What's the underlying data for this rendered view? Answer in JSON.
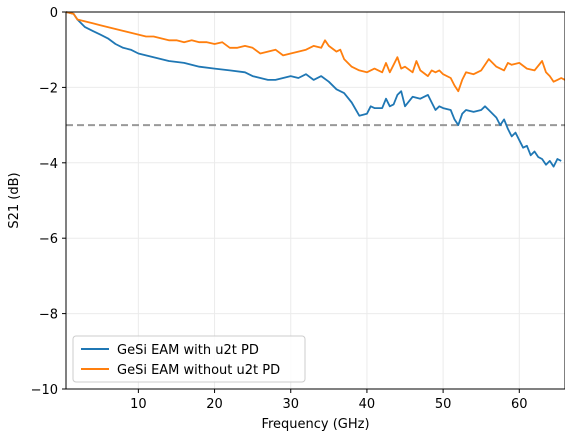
{
  "chart_data": {
    "type": "line",
    "title": "",
    "xlabel": "Frequency (GHz)",
    "ylabel": "S21 (dB)",
    "xlim": [
      0.5,
      66
    ],
    "ylim": [
      -10,
      0
    ],
    "x_ticks": [
      10,
      20,
      30,
      40,
      50,
      60
    ],
    "y_ticks": [
      0,
      -2,
      -4,
      -6,
      -8,
      -10
    ],
    "x_tick_labels": [
      "10",
      "20",
      "30",
      "40",
      "50",
      "60"
    ],
    "y_tick_labels": [
      "0",
      "−2",
      "−4",
      "−6",
      "−8",
      "−10"
    ],
    "grid": true,
    "legend_position": "lower-left",
    "reference_line": {
      "y": -3,
      "style": "dashed",
      "color": "#999999"
    },
    "series": [
      {
        "name": "GeSi EAM with u2t PD",
        "color": "#1f77b4",
        "points": [
          [
            0.5,
            0
          ],
          [
            1.5,
            -0.05
          ],
          [
            2,
            -0.2
          ],
          [
            3,
            -0.4
          ],
          [
            4,
            -0.5
          ],
          [
            5,
            -0.6
          ],
          [
            6,
            -0.7
          ],
          [
            7,
            -0.85
          ],
          [
            8,
            -0.95
          ],
          [
            9,
            -1.0
          ],
          [
            10,
            -1.1
          ],
          [
            11,
            -1.15
          ],
          [
            12,
            -1.2
          ],
          [
            14,
            -1.3
          ],
          [
            16,
            -1.35
          ],
          [
            18,
            -1.45
          ],
          [
            20,
            -1.5
          ],
          [
            22,
            -1.55
          ],
          [
            24,
            -1.6
          ],
          [
            25,
            -1.7
          ],
          [
            26,
            -1.75
          ],
          [
            27,
            -1.8
          ],
          [
            28,
            -1.8
          ],
          [
            29,
            -1.75
          ],
          [
            30,
            -1.7
          ],
          [
            31,
            -1.75
          ],
          [
            32,
            -1.65
          ],
          [
            33,
            -1.8
          ],
          [
            34,
            -1.7
          ],
          [
            35,
            -1.85
          ],
          [
            36,
            -2.05
          ],
          [
            37,
            -2.15
          ],
          [
            38,
            -2.4
          ],
          [
            39,
            -2.75
          ],
          [
            40,
            -2.7
          ],
          [
            40.5,
            -2.5
          ],
          [
            41,
            -2.55
          ],
          [
            42,
            -2.55
          ],
          [
            42.5,
            -2.3
          ],
          [
            43,
            -2.5
          ],
          [
            43.5,
            -2.45
          ],
          [
            44,
            -2.2
          ],
          [
            44.5,
            -2.1
          ],
          [
            45,
            -2.5
          ],
          [
            46,
            -2.25
          ],
          [
            47,
            -2.3
          ],
          [
            48,
            -2.2
          ],
          [
            48.5,
            -2.4
          ],
          [
            49,
            -2.6
          ],
          [
            49.5,
            -2.5
          ],
          [
            50,
            -2.55
          ],
          [
            51,
            -2.6
          ],
          [
            51.5,
            -2.85
          ],
          [
            52,
            -3.0
          ],
          [
            52.5,
            -2.7
          ],
          [
            53,
            -2.6
          ],
          [
            54,
            -2.65
          ],
          [
            55,
            -2.6
          ],
          [
            55.5,
            -2.5
          ],
          [
            56,
            -2.6
          ],
          [
            57,
            -2.8
          ],
          [
            57.5,
            -3.0
          ],
          [
            58,
            -2.85
          ],
          [
            58.5,
            -3.1
          ],
          [
            59,
            -3.3
          ],
          [
            59.5,
            -3.2
          ],
          [
            60,
            -3.4
          ],
          [
            60.5,
            -3.6
          ],
          [
            61,
            -3.55
          ],
          [
            61.5,
            -3.8
          ],
          [
            62,
            -3.7
          ],
          [
            62.5,
            -3.85
          ],
          [
            63,
            -3.9
          ],
          [
            63.5,
            -4.05
          ],
          [
            64,
            -3.95
          ],
          [
            64.5,
            -4.1
          ],
          [
            65,
            -3.9
          ],
          [
            65.5,
            -3.95
          ]
        ]
      },
      {
        "name": "GeSi EAM without u2t PD",
        "color": "#ff7f0e",
        "points": [
          [
            0.5,
            0
          ],
          [
            1.5,
            -0.05
          ],
          [
            2,
            -0.2
          ],
          [
            3,
            -0.25
          ],
          [
            4,
            -0.3
          ],
          [
            5,
            -0.35
          ],
          [
            6,
            -0.4
          ],
          [
            7,
            -0.45
          ],
          [
            8,
            -0.5
          ],
          [
            9,
            -0.55
          ],
          [
            10,
            -0.6
          ],
          [
            11,
            -0.65
          ],
          [
            12,
            -0.65
          ],
          [
            13,
            -0.7
          ],
          [
            14,
            -0.75
          ],
          [
            15,
            -0.75
          ],
          [
            16,
            -0.8
          ],
          [
            17,
            -0.75
          ],
          [
            18,
            -0.8
          ],
          [
            19,
            -0.8
          ],
          [
            20,
            -0.85
          ],
          [
            21,
            -0.8
          ],
          [
            22,
            -0.95
          ],
          [
            23,
            -0.95
          ],
          [
            24,
            -0.9
          ],
          [
            25,
            -0.95
          ],
          [
            26,
            -1.1
          ],
          [
            27,
            -1.05
          ],
          [
            28,
            -1.0
          ],
          [
            29,
            -1.15
          ],
          [
            30,
            -1.1
          ],
          [
            31,
            -1.05
          ],
          [
            32,
            -1.0
          ],
          [
            33,
            -0.9
          ],
          [
            34,
            -0.95
          ],
          [
            34.5,
            -0.75
          ],
          [
            35,
            -0.9
          ],
          [
            36,
            -1.05
          ],
          [
            36.5,
            -1.0
          ],
          [
            37,
            -1.25
          ],
          [
            38,
            -1.45
          ],
          [
            39,
            -1.55
          ],
          [
            40,
            -1.6
          ],
          [
            41,
            -1.5
          ],
          [
            42,
            -1.6
          ],
          [
            42.5,
            -1.35
          ],
          [
            43,
            -1.6
          ],
          [
            43.5,
            -1.4
          ],
          [
            44,
            -1.2
          ],
          [
            44.5,
            -1.5
          ],
          [
            45,
            -1.45
          ],
          [
            46,
            -1.6
          ],
          [
            46.5,
            -1.3
          ],
          [
            47,
            -1.55
          ],
          [
            48,
            -1.7
          ],
          [
            48.5,
            -1.55
          ],
          [
            49,
            -1.6
          ],
          [
            49.5,
            -1.55
          ],
          [
            50,
            -1.65
          ],
          [
            51,
            -1.75
          ],
          [
            51.5,
            -1.95
          ],
          [
            52,
            -2.1
          ],
          [
            52.5,
            -1.8
          ],
          [
            53,
            -1.6
          ],
          [
            54,
            -1.65
          ],
          [
            55,
            -1.55
          ],
          [
            55.5,
            -1.4
          ],
          [
            56,
            -1.25
          ],
          [
            57,
            -1.45
          ],
          [
            58,
            -1.55
          ],
          [
            58.5,
            -1.35
          ],
          [
            59,
            -1.4
          ],
          [
            60,
            -1.35
          ],
          [
            61,
            -1.5
          ],
          [
            62,
            -1.55
          ],
          [
            63,
            -1.3
          ],
          [
            63.5,
            -1.6
          ],
          [
            64,
            -1.7
          ],
          [
            64.5,
            -1.85
          ],
          [
            65,
            -1.8
          ],
          [
            65.5,
            -1.75
          ],
          [
            66,
            -1.8
          ]
        ]
      }
    ]
  }
}
